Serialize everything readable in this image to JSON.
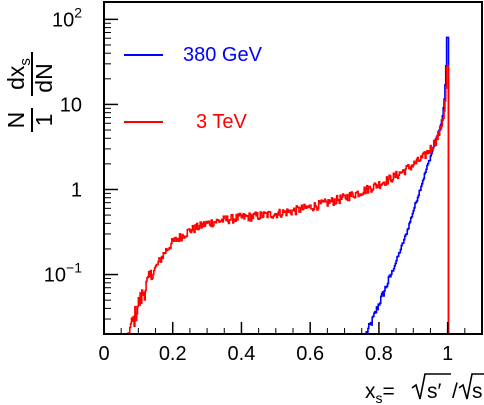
{
  "chart_data": {
    "type": "line",
    "title": "",
    "xlabel": "x_s = √s′ / √s",
    "ylabel": "1/N dN/dx_s",
    "xlim": [
      0,
      1.1
    ],
    "ylim": [
      0.02,
      160
    ],
    "yscale": "log",
    "grid": false,
    "legend_position": "top-left",
    "x_ticks": [
      {
        "value": 0,
        "label": "0"
      },
      {
        "value": 0.2,
        "label": "0.2"
      },
      {
        "value": 0.4,
        "label": "0.4"
      },
      {
        "value": 0.6,
        "label": "0.6"
      },
      {
        "value": 0.8,
        "label": "0.8"
      },
      {
        "value": 1.0,
        "label": "1"
      }
    ],
    "y_ticks": [
      {
        "value": 0.1,
        "base": "10",
        "exp": "−1"
      },
      {
        "value": 1,
        "base": "1",
        "exp": ""
      },
      {
        "value": 10,
        "base": "10",
        "exp": ""
      },
      {
        "value": 100,
        "base": "10",
        "exp": "2"
      }
    ],
    "series": [
      {
        "name": "380 GeV",
        "color": "#0000ff",
        "noise": 0.05,
        "x": [
          0.763,
          0.78,
          0.8,
          0.82,
          0.84,
          0.86,
          0.88,
          0.9,
          0.92,
          0.94,
          0.96,
          0.97,
          0.98,
          0.985,
          0.99,
          0.993,
          0.996,
          0.998,
          0.9995
        ],
        "y": [
          0.02,
          0.028,
          0.045,
          0.07,
          0.11,
          0.18,
          0.3,
          0.55,
          1.0,
          1.8,
          3.2,
          4.2,
          5.5,
          7.0,
          10.0,
          16.0,
          30.0,
          55.0,
          105.0
        ]
      },
      {
        "name": "3 TeV",
        "color": "#ff0000",
        "noise": 0.12,
        "x": [
          0.07,
          0.085,
          0.1,
          0.11,
          0.12,
          0.14,
          0.16,
          0.18,
          0.2,
          0.25,
          0.3,
          0.35,
          0.4,
          0.45,
          0.5,
          0.55,
          0.6,
          0.65,
          0.7,
          0.75,
          0.8,
          0.85,
          0.9,
          0.93,
          0.95,
          0.97,
          0.98,
          0.99,
          0.995,
          0.9985,
          0.9995
        ],
        "y": [
          0.02,
          0.028,
          0.045,
          0.055,
          0.07,
          0.1,
          0.14,
          0.19,
          0.24,
          0.33,
          0.4,
          0.44,
          0.47,
          0.49,
          0.52,
          0.56,
          0.62,
          0.7,
          0.8,
          0.95,
          1.15,
          1.45,
          1.95,
          2.4,
          3.0,
          4.0,
          5.2,
          8.0,
          13.0,
          30.0,
          95.0
        ]
      }
    ]
  }
}
